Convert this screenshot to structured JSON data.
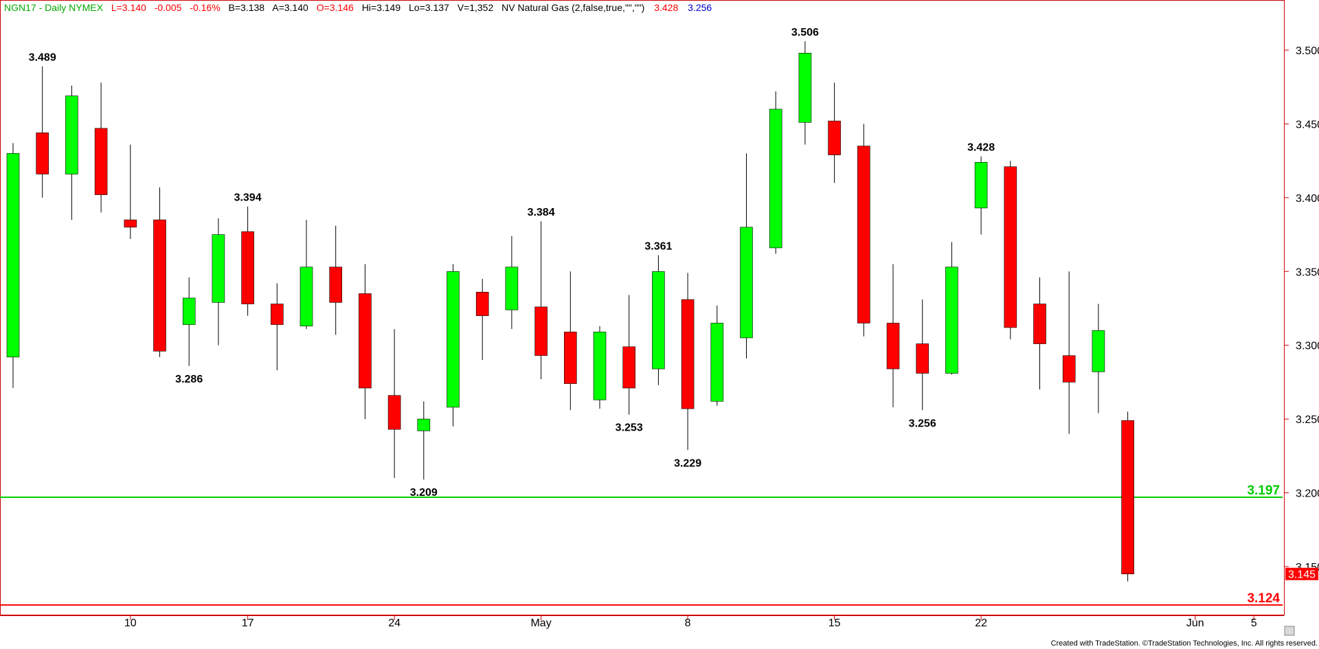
{
  "header": {
    "symbol": "NGN17 - Daily  NYMEX",
    "last": "L=3.140",
    "change": "-0.005",
    "pct": "-0.16%",
    "bid": "B=3.138",
    "ask": "A=3.140",
    "open": "O=3.146",
    "high": "Hi=3.149",
    "low": "Lo=3.137",
    "volume": "V=1,352",
    "study": "NV Natural Gas (2,false,true,\"\",\"\")",
    "study_val1": "3.428",
    "study_val2": "3.256"
  },
  "footer": "Created with TradeStation. ©TradeStation Technologies, Inc. All rights reserved.",
  "colors": {
    "up": "#00ff00",
    "down": "#ff0000",
    "green_line": "#00cc00",
    "red_line": "#ff0000",
    "header_symbol": "#00aa00",
    "header_red": "#ff0000",
    "header_blue": "#0000cc"
  },
  "chart_data": {
    "type": "candlestick",
    "ylim": [
      3.11,
      3.53
    ],
    "y_ticks": [
      "3.500",
      "3.450",
      "3.400",
      "3.350",
      "3.300",
      "3.250",
      "3.200",
      "3.150"
    ],
    "x_ticks": [
      {
        "label": "10",
        "idx": 4
      },
      {
        "label": "17",
        "idx": 8
      },
      {
        "label": "24",
        "idx": 13
      },
      {
        "label": "May",
        "idx": 18
      },
      {
        "label": "8",
        "idx": 23
      },
      {
        "label": "15",
        "idx": 28
      },
      {
        "label": "22",
        "idx": 33
      },
      {
        "label": "Jun",
        "idx": 40.3
      },
      {
        "label": "5",
        "idx": 42.3
      }
    ],
    "candles": [
      {
        "o": 3.292,
        "h": 3.437,
        "l": 3.271,
        "c": 3.43
      },
      {
        "o": 3.444,
        "h": 3.489,
        "l": 3.4,
        "c": 3.416
      },
      {
        "o": 3.416,
        "h": 3.476,
        "l": 3.385,
        "c": 3.469
      },
      {
        "o": 3.447,
        "h": 3.478,
        "l": 3.39,
        "c": 3.402
      },
      {
        "o": 3.385,
        "h": 3.436,
        "l": 3.372,
        "c": 3.38
      },
      {
        "o": 3.385,
        "h": 3.407,
        "l": 3.292,
        "c": 3.296
      },
      {
        "o": 3.314,
        "h": 3.346,
        "l": 3.286,
        "c": 3.332
      },
      {
        "o": 3.329,
        "h": 3.386,
        "l": 3.3,
        "c": 3.375
      },
      {
        "o": 3.377,
        "h": 3.394,
        "l": 3.32,
        "c": 3.328
      },
      {
        "o": 3.328,
        "h": 3.342,
        "l": 3.283,
        "c": 3.314
      },
      {
        "o": 3.313,
        "h": 3.385,
        "l": 3.311,
        "c": 3.353
      },
      {
        "o": 3.353,
        "h": 3.381,
        "l": 3.307,
        "c": 3.329
      },
      {
        "o": 3.335,
        "h": 3.355,
        "l": 3.25,
        "c": 3.271
      },
      {
        "o": 3.266,
        "h": 3.311,
        "l": 3.21,
        "c": 3.243
      },
      {
        "o": 3.242,
        "h": 3.262,
        "l": 3.209,
        "c": 3.25
      },
      {
        "o": 3.258,
        "h": 3.355,
        "l": 3.245,
        "c": 3.35
      },
      {
        "o": 3.336,
        "h": 3.345,
        "l": 3.29,
        "c": 3.32
      },
      {
        "o": 3.324,
        "h": 3.374,
        "l": 3.311,
        "c": 3.353
      },
      {
        "o": 3.326,
        "h": 3.384,
        "l": 3.277,
        "c": 3.293
      },
      {
        "o": 3.309,
        "h": 3.35,
        "l": 3.256,
        "c": 3.274
      },
      {
        "o": 3.263,
        "h": 3.313,
        "l": 3.257,
        "c": 3.309
      },
      {
        "o": 3.299,
        "h": 3.334,
        "l": 3.253,
        "c": 3.271
      },
      {
        "o": 3.284,
        "h": 3.361,
        "l": 3.273,
        "c": 3.35
      },
      {
        "o": 3.331,
        "h": 3.349,
        "l": 3.229,
        "c": 3.257
      },
      {
        "o": 3.262,
        "h": 3.327,
        "l": 3.259,
        "c": 3.315
      },
      {
        "o": 3.305,
        "h": 3.43,
        "l": 3.291,
        "c": 3.38
      },
      {
        "o": 3.366,
        "h": 3.472,
        "l": 3.362,
        "c": 3.46
      },
      {
        "o": 3.451,
        "h": 3.506,
        "l": 3.436,
        "c": 3.498
      },
      {
        "o": 3.452,
        "h": 3.478,
        "l": 3.41,
        "c": 3.429
      },
      {
        "o": 3.435,
        "h": 3.45,
        "l": 3.306,
        "c": 3.315
      },
      {
        "o": 3.315,
        "h": 3.355,
        "l": 3.258,
        "c": 3.284
      },
      {
        "o": 3.301,
        "h": 3.331,
        "l": 3.256,
        "c": 3.281
      },
      {
        "o": 3.281,
        "h": 3.37,
        "l": 3.28,
        "c": 3.353
      },
      {
        "o": 3.393,
        "h": 3.428,
        "l": 3.375,
        "c": 3.424
      },
      {
        "o": 3.421,
        "h": 3.425,
        "l": 3.304,
        "c": 3.312
      },
      {
        "o": 3.328,
        "h": 3.346,
        "l": 3.27,
        "c": 3.301
      },
      {
        "o": 3.293,
        "h": 3.35,
        "l": 3.24,
        "c": 3.275
      },
      {
        "o": 3.282,
        "h": 3.328,
        "l": 3.254,
        "c": 3.31
      },
      {
        "o": 3.249,
        "h": 3.255,
        "l": 3.14,
        "c": 3.145
      }
    ],
    "annotations": [
      {
        "text": "3.489",
        "idx": 1,
        "value": 3.489,
        "pos": "above"
      },
      {
        "text": "3.394",
        "idx": 8,
        "value": 3.394,
        "pos": "above"
      },
      {
        "text": "3.286",
        "idx": 6,
        "value": 3.286,
        "pos": "below"
      },
      {
        "text": "3.209",
        "idx": 14,
        "value": 3.209,
        "pos": "below"
      },
      {
        "text": "3.384",
        "idx": 18,
        "value": 3.384,
        "pos": "above"
      },
      {
        "text": "3.253",
        "idx": 21,
        "value": 3.253,
        "pos": "below"
      },
      {
        "text": "3.361",
        "idx": 22,
        "value": 3.361,
        "pos": "above"
      },
      {
        "text": "3.229",
        "idx": 23,
        "value": 3.229,
        "pos": "below"
      },
      {
        "text": "3.506",
        "idx": 27,
        "value": 3.506,
        "pos": "above"
      },
      {
        "text": "3.256",
        "idx": 31,
        "value": 3.256,
        "pos": "below"
      },
      {
        "text": "3.428",
        "idx": 33,
        "value": 3.428,
        "pos": "above"
      }
    ],
    "hlines": [
      {
        "value": 3.197,
        "label": "3.197",
        "color": "#00cc00"
      },
      {
        "value": 3.124,
        "label": "3.124",
        "color": "#ff0000"
      }
    ],
    "last_price_label": "3.145"
  }
}
